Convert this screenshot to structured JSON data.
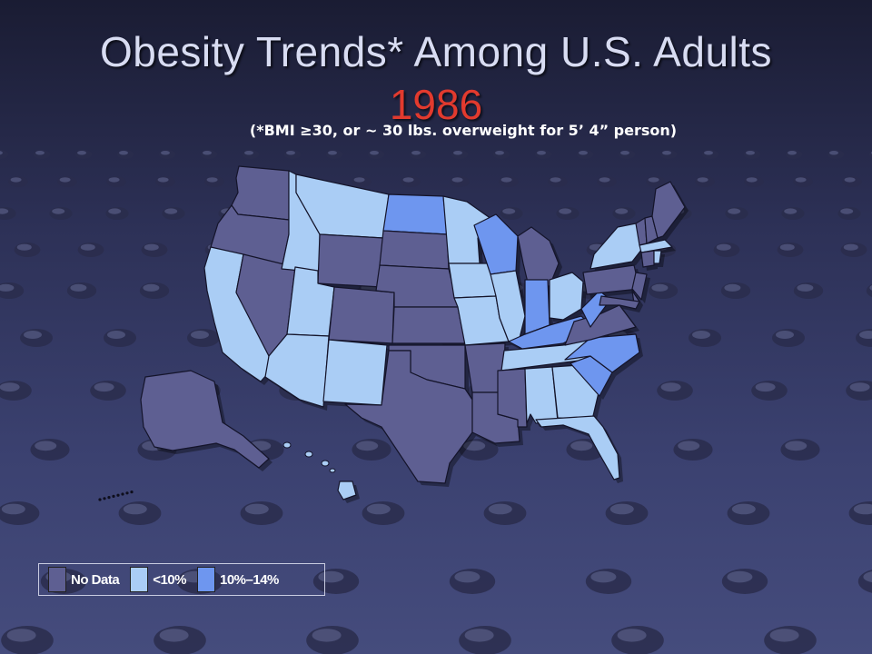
{
  "title": "Obesity Trends* Among U.S. Adults",
  "year": "1986",
  "subtitle": "(*BMI ≥30, or ~ 30 lbs. overweight for 5’ 4” person)",
  "colors": {
    "no_data": "#5e5f92",
    "lt10": "#aacdf5",
    "p10_14": "#6e96ef",
    "state_border": "#14142a"
  },
  "legend": [
    {
      "label": "No Data",
      "color": "#5e5f92"
    },
    {
      "label": "<10%",
      "color": "#aacdf5"
    },
    {
      "label": "10%–14%",
      "color": "#6e96ef"
    }
  ],
  "states": {
    "no_data": [
      "WA",
      "OR",
      "NV",
      "WY",
      "SD",
      "NE",
      "CO",
      "KS",
      "OK",
      "TX",
      "AR",
      "LA",
      "MS",
      "VA",
      "PA",
      "NJ",
      "DE",
      "MD",
      "VT",
      "NH",
      "ME",
      "CT",
      "MI",
      "AK"
    ],
    "lt10": [
      "CA",
      "ID",
      "MT",
      "UT",
      "AZ",
      "NM",
      "MN",
      "IA",
      "MO",
      "IL",
      "OH",
      "NY",
      "MA",
      "RI",
      "TN",
      "AL",
      "GA",
      "FL",
      "HI"
    ],
    "p10_14": [
      "ND",
      "WI",
      "IN",
      "KY",
      "WV",
      "NC",
      "SC"
    ]
  }
}
